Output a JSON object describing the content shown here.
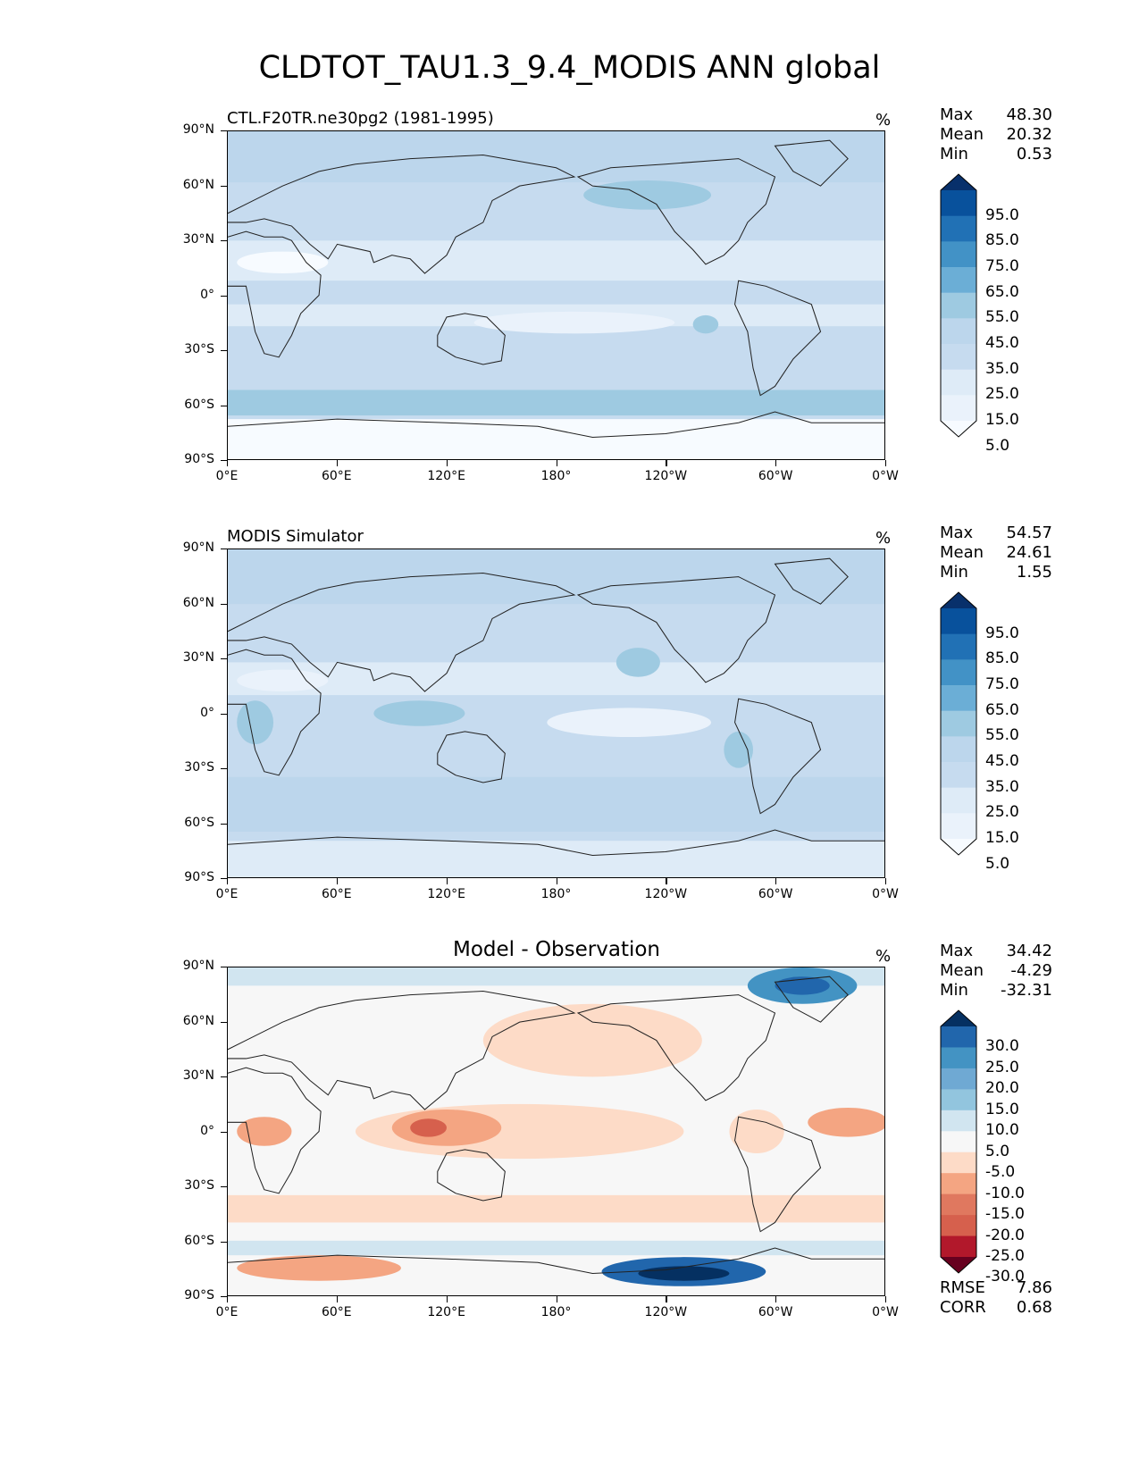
{
  "title": "CLDTOT_TAU1.3_9.4_MODIS ANN global",
  "x_ticks": [
    "0°E",
    "60°E",
    "120°E",
    "180°",
    "120°W",
    "60°W",
    "0°W"
  ],
  "y_ticks": [
    "90°N",
    "60°N",
    "30°N",
    "0°",
    "30°S",
    "60°S",
    "90°S"
  ],
  "panels": [
    {
      "left_title": "CTL.F20TR.ne30pg2 (1981-1995)",
      "center_title": "",
      "units": "%",
      "stats": {
        "max_label": "Max",
        "max": "48.30",
        "mean_label": "Mean",
        "mean": "20.32",
        "min_label": "Min",
        "min": "0.53"
      },
      "colorbar": {
        "labels": [
          "95.0",
          "85.0",
          "75.0",
          "65.0",
          "55.0",
          "45.0",
          "35.0",
          "25.0",
          "15.0",
          "5.0"
        ],
        "colors": [
          "#08306b",
          "#08519c",
          "#2171b5",
          "#4292c6",
          "#6baed6",
          "#9ecae1",
          "#bcd6ec",
          "#c6dbef",
          "#deebf7",
          "#eaf2fb",
          "#f7fbff"
        ]
      }
    },
    {
      "left_title": "MODIS Simulator",
      "center_title": "",
      "units": "%",
      "stats": {
        "max_label": "Max",
        "max": "54.57",
        "mean_label": "Mean",
        "mean": "24.61",
        "min_label": "Min",
        "min": "1.55"
      },
      "colorbar": {
        "labels": [
          "95.0",
          "85.0",
          "75.0",
          "65.0",
          "55.0",
          "45.0",
          "35.0",
          "25.0",
          "15.0",
          "5.0"
        ],
        "colors": [
          "#08306b",
          "#08519c",
          "#2171b5",
          "#4292c6",
          "#6baed6",
          "#9ecae1",
          "#bcd6ec",
          "#c6dbef",
          "#deebf7",
          "#eaf2fb",
          "#f7fbff"
        ]
      }
    },
    {
      "left_title": "",
      "center_title": "Model - Observation",
      "units": "%",
      "stats": {
        "max_label": "Max",
        "max": "34.42",
        "mean_label": "Mean",
        "mean": "-4.29",
        "min_label": "Min",
        "min": "-32.31"
      },
      "colorbar": {
        "labels": [
          "30.0",
          "25.0",
          "20.0",
          "15.0",
          "10.0",
          "5.0",
          "-5.0",
          "-10.0",
          "-15.0",
          "-20.0",
          "-25.0",
          "-30.0"
        ],
        "colors": [
          "#053061",
          "#2166ac",
          "#4393c3",
          "#6fa9d3",
          "#92c5de",
          "#d1e5f0",
          "#f7f7f7",
          "#fddbc7",
          "#f4a582",
          "#e0785f",
          "#d6604d",
          "#b2182b",
          "#67001f"
        ]
      },
      "error_stats": {
        "rmse_label": "RMSE",
        "rmse": "7.86",
        "corr_label": "CORR",
        "corr": "0.68"
      }
    }
  ]
}
